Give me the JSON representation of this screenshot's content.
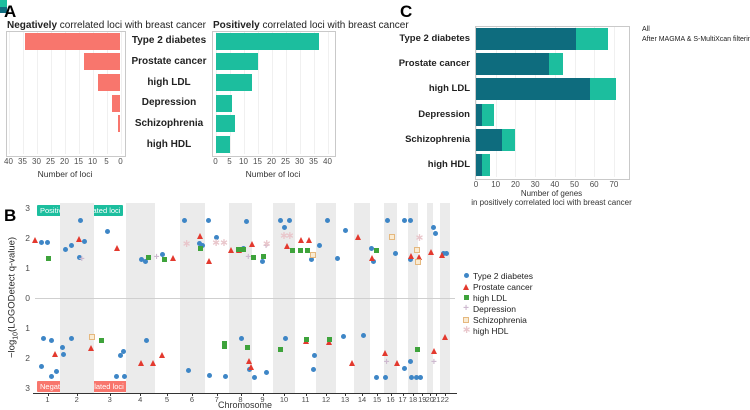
{
  "panels": {
    "a_label": "A",
    "b_label": "B",
    "c_label": "C"
  },
  "chart_data": [
    {
      "id": "negative-loci",
      "type": "bar",
      "orientation": "horizontal",
      "title_bold": "Negatively",
      "title_rest": " correlated loci with breast cancer",
      "categories": [
        "Type 2 diabetes",
        "Prostate cancer",
        "high LDL",
        "Depression",
        "Schizophrenia",
        "high HDL"
      ],
      "values": [
        34,
        13,
        8,
        3,
        1,
        0
      ],
      "xlabel": "Number of loci",
      "xticks": [
        40,
        35,
        30,
        25,
        20,
        15,
        10,
        5,
        0
      ],
      "xlim": [
        40,
        0
      ],
      "bar_color": "#F8766D"
    },
    {
      "id": "positive-loci",
      "type": "bar",
      "orientation": "horizontal",
      "title_bold": "Positively",
      "title_rest": " correlated loci with breast cancer",
      "categories": [
        "Type 2 diabetes",
        "Prostate cancer",
        "high LDL",
        "Depression",
        "Schizophrenia",
        "high HDL"
      ],
      "values": [
        37,
        15,
        13,
        6,
        7,
        5
      ],
      "xlabel": "Number of loci",
      "xticks": [
        0,
        5,
        10,
        15,
        20,
        25,
        30,
        35,
        40
      ],
      "xlim": [
        0,
        40
      ],
      "bar_color": "#1CBE9E"
    },
    {
      "id": "gene-counts",
      "type": "bar",
      "orientation": "horizontal",
      "categories": [
        "Type 2 diabetes",
        "Prostate cancer",
        "high LDL",
        "Depression",
        "Schizophrenia",
        "high HDL"
      ],
      "series": [
        {
          "name": "All",
          "color": "#1CBE9E",
          "values": [
            67,
            44,
            71,
            9,
            20,
            7
          ]
        },
        {
          "name": "After MAGMA & S-MultiXcan filtering",
          "color": "#0E6C7E",
          "values": [
            51,
            37,
            58,
            3,
            13,
            3
          ]
        }
      ],
      "xticks": [
        0,
        10,
        20,
        30,
        40,
        50,
        60,
        70
      ],
      "xlim": [
        0,
        75
      ],
      "xlabel_line1": "Number of genes",
      "xlabel_line2": "in positively correlated loci with breast cancer",
      "legend_position": "top-right"
    },
    {
      "id": "logodetect-scatter",
      "type": "scatter",
      "xlabel": "Chromosome",
      "ylabel_pre": "−log",
      "ylabel_sub": "10",
      "ylabel_post": "(LOGODetect q-value)",
      "pos_annotation": "Positively correlated loci",
      "neg_annotation": "Negatively correlated loci",
      "pos_color": "#1CBE9E",
      "neg_color": "#F8766D",
      "band_color": "#EBEBEB",
      "ylim": [
        -3.2,
        3.2
      ],
      "ytick_labels": [
        "3",
        "2",
        "1",
        "0",
        "1",
        "2",
        "3"
      ],
      "ytick_values": [
        3,
        2,
        1,
        0,
        -1,
        -2,
        -3
      ],
      "chromosomes": [
        "1",
        "2",
        "3",
        "4",
        "5",
        "6",
        "7",
        "8",
        "9",
        "10",
        "11",
        "12",
        "13",
        "14",
        "15",
        "16",
        "17",
        "18",
        "19",
        "20",
        "21",
        "22"
      ],
      "chrom_widths": [
        25,
        33.5,
        32.5,
        28.5,
        25,
        25,
        24.5,
        23,
        21,
        22,
        21,
        20,
        18,
        16,
        14,
        13,
        11,
        10,
        8.5,
        6.5,
        6.5,
        10.5
      ],
      "traits": [
        {
          "name": "Type 2 diabetes",
          "shape": "circle",
          "color": "#3E86C6"
        },
        {
          "name": "Prostate cancer",
          "shape": "triangle",
          "color": "#E3392E"
        },
        {
          "name": "high LDL",
          "shape": "square",
          "color": "#3EA33B"
        },
        {
          "name": "Depression",
          "shape": "plus",
          "color": "#CDB9CF"
        },
        {
          "name": "Schizophrenia",
          "shape": "open-square",
          "color": "#E5B87E"
        },
        {
          "name": "high HDL",
          "shape": "asterisk",
          "color": "#E9C6CB"
        }
      ],
      "points": [
        [
          0,
          1,
          0.27,
          1.84
        ],
        [
          0,
          1,
          0.51,
          1.84
        ],
        [
          0,
          2,
          0.15,
          1.62
        ],
        [
          0,
          2,
          0.33,
          1.74
        ],
        [
          0,
          2,
          0.6,
          2.6
        ],
        [
          0,
          2,
          0.73,
          1.9
        ],
        [
          0,
          2,
          0.58,
          1.36
        ],
        [
          0,
          3,
          0.44,
          2.22
        ],
        [
          0,
          4,
          0.55,
          1.27
        ],
        [
          0,
          4,
          0.67,
          1.23
        ],
        [
          0,
          5,
          0.3,
          1.45
        ],
        [
          0,
          6,
          0.18,
          2.6
        ],
        [
          0,
          6,
          0.78,
          1.82
        ],
        [
          0,
          6,
          0.93,
          1.74
        ],
        [
          0,
          7,
          0.15,
          2.6
        ],
        [
          0,
          7,
          0.5,
          2.02
        ],
        [
          0,
          8,
          0.77,
          2.55
        ],
        [
          0,
          8,
          0.62,
          1.66
        ],
        [
          0,
          9,
          0.51,
          1.23
        ],
        [
          0,
          10,
          0.35,
          2.6
        ],
        [
          0,
          10,
          0.74,
          2.6
        ],
        [
          0,
          10,
          0.51,
          2.34
        ],
        [
          0,
          11,
          0.8,
          1.27
        ],
        [
          0,
          12,
          0.17,
          1.74
        ],
        [
          0,
          12,
          0.59,
          2.6
        ],
        [
          0,
          13,
          0.08,
          1.32
        ],
        [
          0,
          13,
          0.5,
          2.25
        ],
        [
          0,
          15,
          0.1,
          1.66
        ],
        [
          0,
          15,
          0.24,
          1.21
        ],
        [
          0,
          16,
          0.25,
          2.6
        ],
        [
          0,
          16,
          0.85,
          1.49
        ],
        [
          0,
          17,
          0.7,
          2.6
        ],
        [
          0,
          18,
          0.27,
          2.6
        ],
        [
          0,
          18,
          0.2,
          1.27
        ],
        [
          0,
          21,
          0.15,
          2.34
        ],
        [
          0,
          21,
          0.46,
          2.16
        ],
        [
          0,
          22,
          0.36,
          1.49
        ],
        [
          0,
          22,
          0.69,
          1.49
        ],
        [
          1,
          1,
          0.03,
          1.95
        ],
        [
          1,
          2,
          0.57,
          1.96
        ],
        [
          1,
          3,
          0.73,
          1.68
        ],
        [
          1,
          5,
          0.75,
          1.33
        ],
        [
          1,
          6,
          0.85,
          2.08
        ],
        [
          1,
          7,
          0.2,
          1.23
        ],
        [
          1,
          8,
          0.12,
          1.6
        ],
        [
          1,
          8,
          0.45,
          1.6
        ],
        [
          1,
          9,
          0.03,
          1.79
        ],
        [
          1,
          10,
          0.65,
          1.74
        ],
        [
          1,
          11,
          0.32,
          1.93
        ],
        [
          1,
          11,
          0.68,
          1.93
        ],
        [
          1,
          14,
          0.27,
          2.04
        ],
        [
          1,
          15,
          0.19,
          1.34
        ],
        [
          1,
          18,
          0.37,
          1.41
        ],
        [
          1,
          19,
          0.15,
          1.38
        ],
        [
          1,
          20,
          0.8,
          1.54
        ],
        [
          1,
          22,
          0.3,
          1.43
        ],
        [
          2,
          1,
          0.53,
          1.32
        ],
        [
          2,
          4,
          0.8,
          1.35
        ],
        [
          2,
          5,
          0.38,
          1.27
        ],
        [
          2,
          6,
          0.85,
          1.66
        ],
        [
          2,
          8,
          0.4,
          1.63
        ],
        [
          2,
          8,
          0.65,
          1.63
        ],
        [
          2,
          9,
          0.05,
          1.34
        ],
        [
          2,
          9,
          0.55,
          1.37
        ],
        [
          2,
          10,
          0.9,
          1.57
        ],
        [
          2,
          11,
          0.24,
          1.57
        ],
        [
          2,
          11,
          0.58,
          1.57
        ],
        [
          2,
          15,
          0.48,
          1.6
        ],
        [
          3,
          2,
          0.65,
          1.27
        ],
        [
          3,
          5,
          0.08,
          1.32
        ],
        [
          3,
          8,
          0.84,
          1.32
        ],
        [
          3,
          9,
          0.67,
          1.71
        ],
        [
          4,
          11,
          0.87,
          1.43
        ],
        [
          4,
          16,
          0.64,
          2.04
        ],
        [
          4,
          18,
          0.87,
          1.6
        ],
        [
          4,
          18,
          0.95,
          1.21
        ],
        [
          5,
          6,
          0.26,
          1.79
        ],
        [
          5,
          7,
          0.45,
          1.82
        ],
        [
          5,
          7,
          0.77,
          1.82
        ],
        [
          5,
          9,
          0.67,
          1.79
        ],
        [
          5,
          10,
          0.47,
          2.04
        ],
        [
          5,
          10,
          0.74,
          2.04
        ],
        [
          5,
          19,
          0.1,
          1.99
        ],
        [
          0,
          1,
          0.33,
          -1.34
        ],
        [
          0,
          1,
          0.64,
          -1.4
        ],
        [
          0,
          1,
          0.27,
          -2.29
        ],
        [
          0,
          1,
          0.64,
          -2.62
        ],
        [
          0,
          1,
          0.87,
          -2.46
        ],
        [
          0,
          2,
          0.08,
          -1.66
        ],
        [
          0,
          2,
          0.1,
          -1.88
        ],
        [
          0,
          2,
          0.35,
          -1.34
        ],
        [
          0,
          3,
          0.82,
          -1.9
        ],
        [
          0,
          3,
          0.92,
          -1.77
        ],
        [
          0,
          3,
          0.71,
          -2.62
        ],
        [
          0,
          3,
          0.95,
          -2.62
        ],
        [
          0,
          4,
          0.73,
          -1.4
        ],
        [
          0,
          6,
          0.35,
          -2.4
        ],
        [
          0,
          7,
          0.22,
          -2.59
        ],
        [
          0,
          7,
          0.84,
          -2.62
        ],
        [
          0,
          8,
          0.55,
          -1.34
        ],
        [
          0,
          8,
          0.87,
          -2.37
        ],
        [
          0,
          9,
          0.11,
          -2.66
        ],
        [
          0,
          9,
          0.7,
          -2.49
        ],
        [
          0,
          10,
          0.55,
          -1.34
        ],
        [
          0,
          11,
          0.95,
          -1.9
        ],
        [
          0,
          11,
          0.87,
          -2.37
        ],
        [
          0,
          13,
          0.41,
          -1.29
        ],
        [
          0,
          14,
          0.58,
          -1.26
        ],
        [
          0,
          15,
          0.43,
          -2.64
        ],
        [
          0,
          16,
          0.15,
          -2.64
        ],
        [
          0,
          17,
          0.66,
          -2.34
        ],
        [
          0,
          18,
          0.2,
          -2.12
        ],
        [
          0,
          18,
          0.37,
          -2.66
        ],
        [
          0,
          18,
          0.8,
          -2.66
        ],
        [
          0,
          19,
          0.32,
          -2.66
        ],
        [
          1,
          1,
          0.8,
          -1.88
        ],
        [
          1,
          2,
          0.95,
          -1.66
        ],
        [
          1,
          4,
          0.55,
          -2.18
        ],
        [
          1,
          4,
          0.97,
          -2.15
        ],
        [
          1,
          5,
          0.33,
          -1.9
        ],
        [
          1,
          8,
          0.91,
          -2.1
        ],
        [
          1,
          8,
          0.97,
          -2.29
        ],
        [
          1,
          11,
          0.55,
          -1.42
        ],
        [
          1,
          12,
          0.67,
          -1.45
        ],
        [
          1,
          13,
          0.93,
          -2.18
        ],
        [
          1,
          16,
          0.15,
          -1.84
        ],
        [
          1,
          17,
          0.06,
          -2.18
        ],
        [
          1,
          21,
          0.3,
          -1.76
        ],
        [
          1,
          22,
          0.6,
          -1.31
        ],
        [
          2,
          3,
          0.25,
          -1.4
        ],
        [
          2,
          7,
          0.8,
          -1.51
        ],
        [
          2,
          7,
          0.8,
          -1.63
        ],
        [
          2,
          8,
          0.81,
          -1.66
        ],
        [
          2,
          10,
          0.35,
          -1.7
        ],
        [
          2,
          11,
          0.55,
          -1.38
        ],
        [
          2,
          12,
          0.67,
          -1.38
        ],
        [
          2,
          18,
          0.98,
          -1.7
        ],
        [
          3,
          16,
          0.2,
          -2.18
        ],
        [
          3,
          21,
          0.15,
          -2.18
        ],
        [
          4,
          2,
          0.97,
          -1.29
        ]
      ]
    }
  ]
}
